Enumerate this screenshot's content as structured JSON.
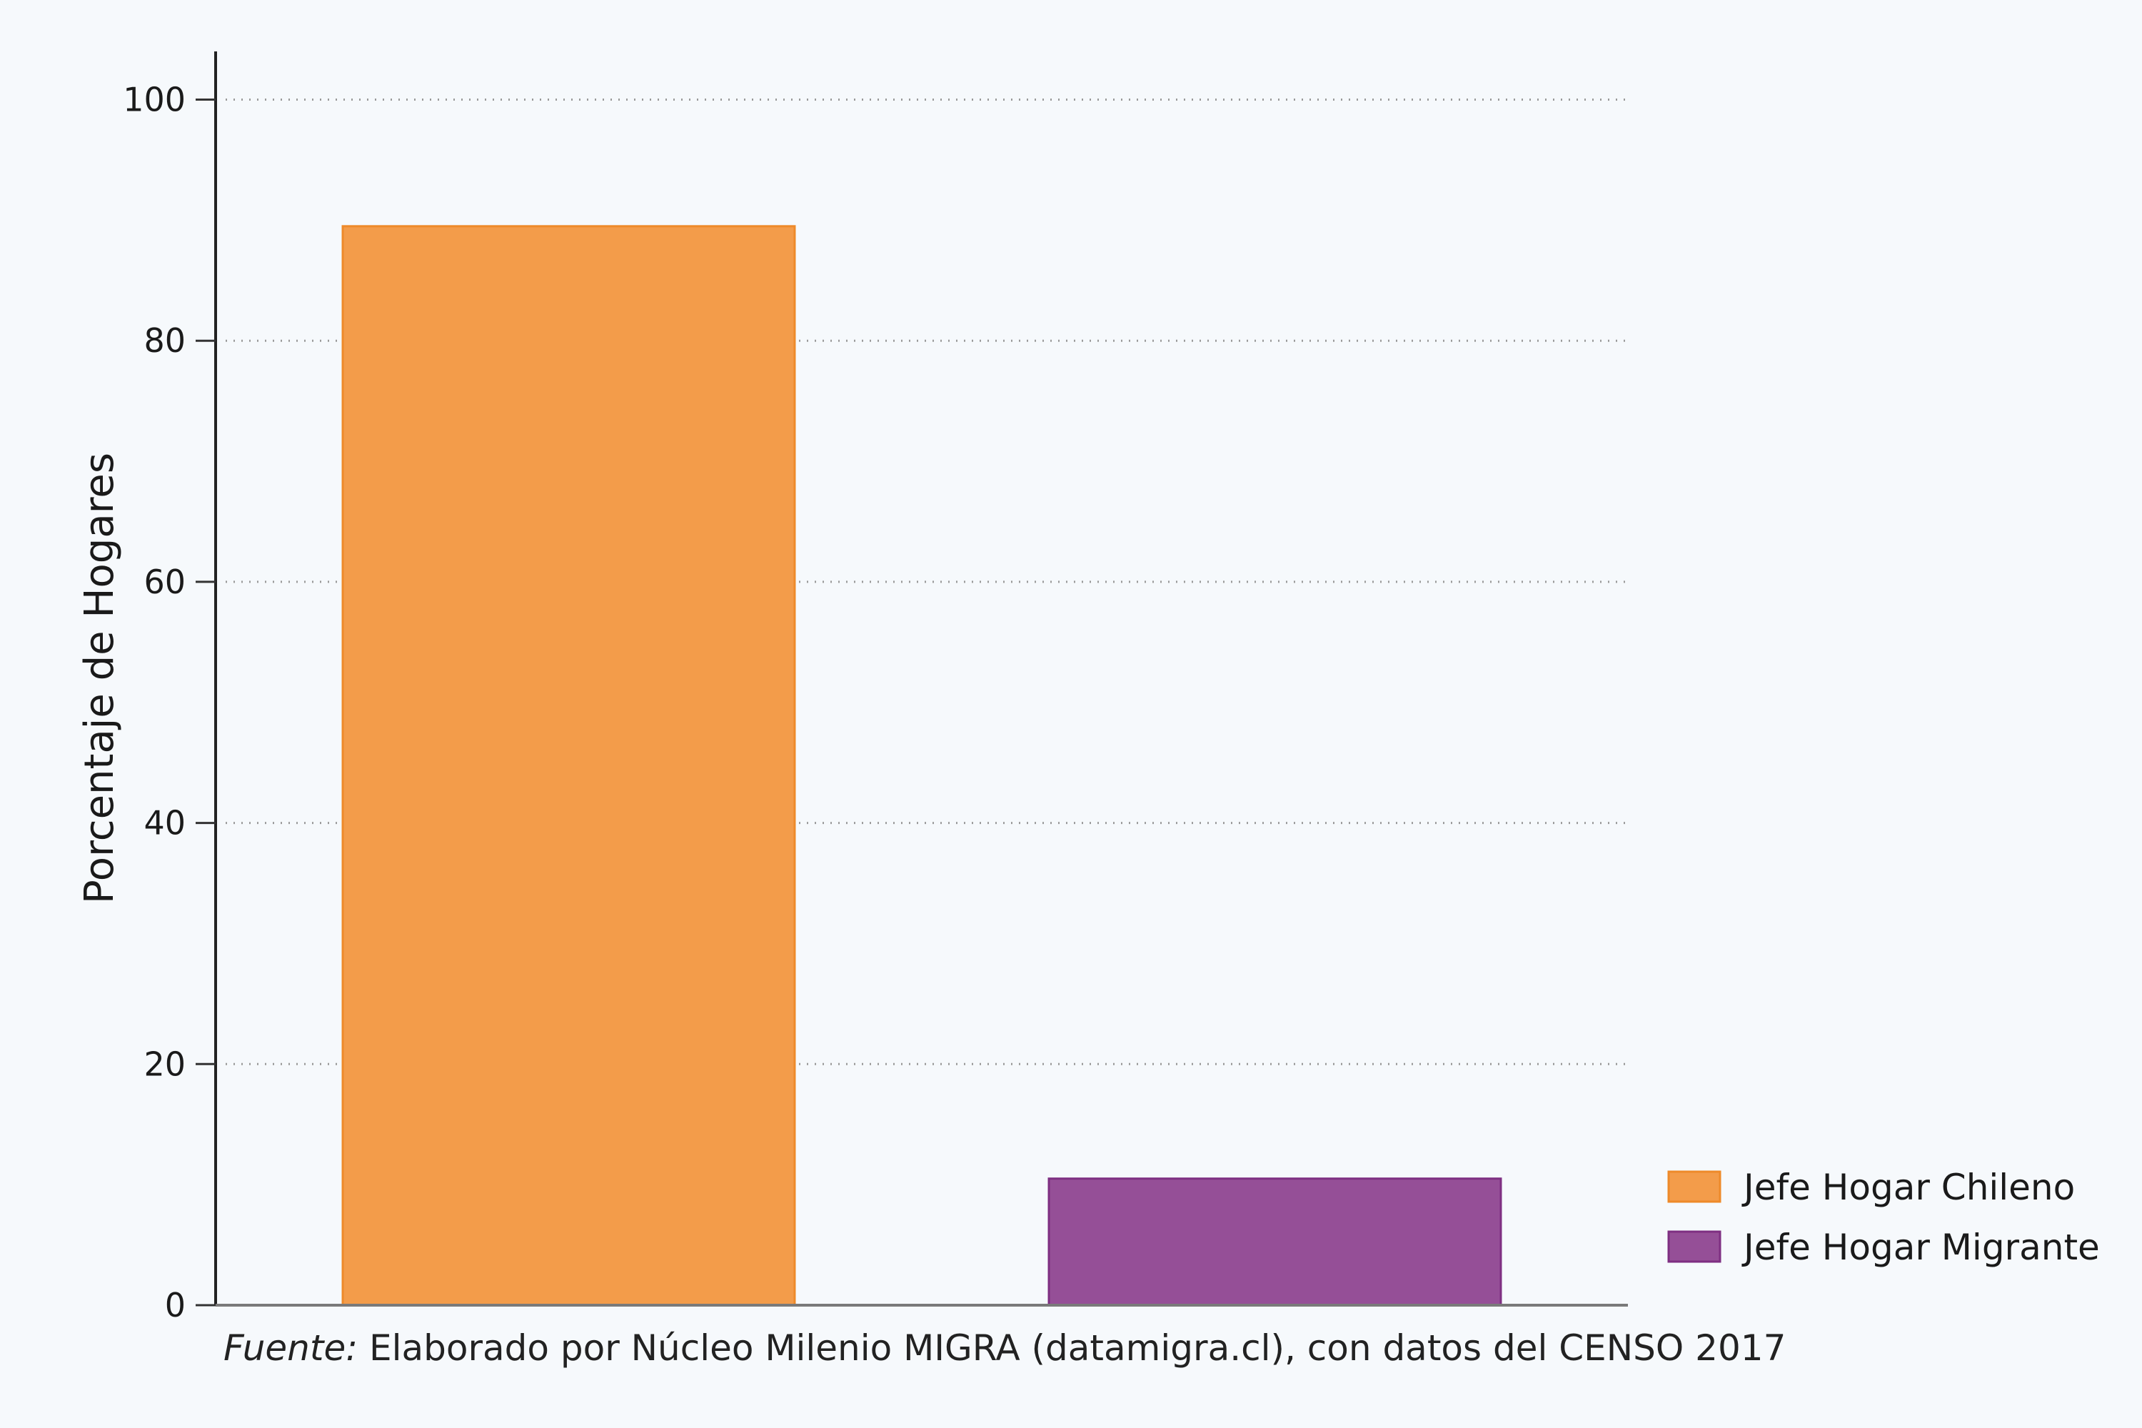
{
  "chart_data": {
    "type": "bar",
    "categories": [
      "Jefe Hogar Chileno",
      "Jefe Hogar Migrante"
    ],
    "values": [
      89.5,
      10.5
    ],
    "colors": [
      "#f39c4a",
      "#954f97"
    ],
    "edge_colors": [
      "#ee8a2a",
      "#7e2f82"
    ],
    "title": "",
    "xlabel": "",
    "ylabel": "Porcentaje de Hogares",
    "ylim": [
      0,
      104
    ],
    "yticks": [
      0,
      20,
      40,
      60,
      80,
      100
    ],
    "grid": "horizontal dotted",
    "legend_position": "bottom-right",
    "legend": [
      "Jefe Hogar Chileno",
      "Jefe Hogar Migrante"
    ]
  },
  "caption": {
    "prefix": "Fuente:",
    "text": " Elaborado por Núcleo Milenio MIGRA (datamigra.cl), con datos del CENSO 2017"
  }
}
